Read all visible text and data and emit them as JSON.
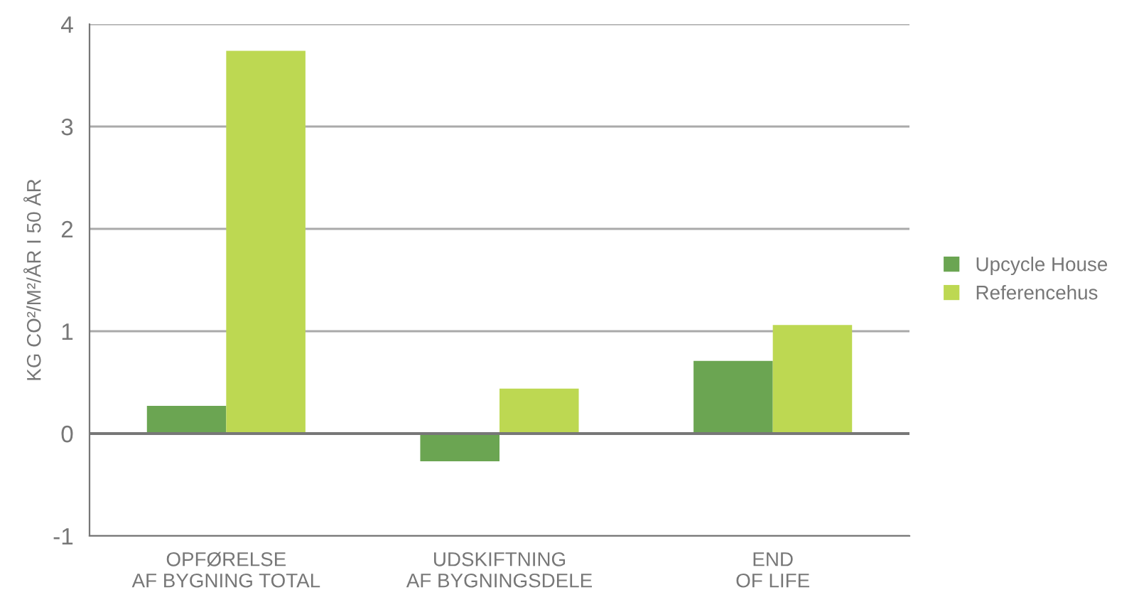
{
  "chart_data": {
    "type": "bar",
    "ylabel": "KG CO²/M²/ÅR I 50 ÅR",
    "categories": [
      "OPFØRELSE\nAF BYGNING TOTAL",
      "UDSKIFTNING\nAF BYGNINGSDELE",
      "END\nOF LIFE"
    ],
    "series": [
      {
        "name": "Upcycle House",
        "color": "#6ba552",
        "values": [
          0.27,
          -0.27,
          0.71
        ]
      },
      {
        "name": "Referencehus",
        "color": "#bdd852",
        "values": [
          3.74,
          0.44,
          1.06
        ]
      }
    ],
    "ylim": [
      -1,
      4
    ],
    "yticks": [
      {
        "value": -1,
        "label": "-1"
      },
      0,
      1,
      2,
      3,
      4
    ],
    "grid": "y",
    "legend": "right"
  }
}
